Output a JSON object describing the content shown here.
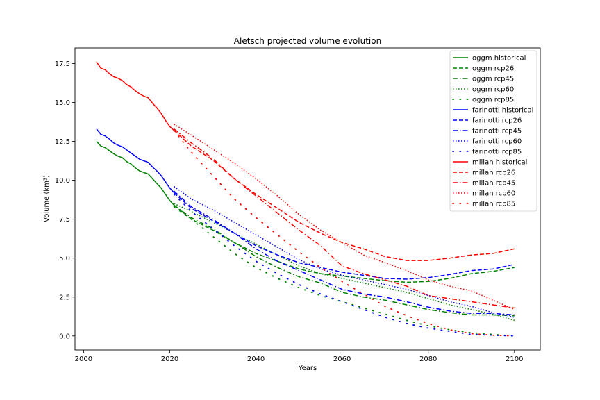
{
  "chart_data": {
    "type": "line",
    "title": "Aletsch projected volume evolution",
    "xlabel": "Years",
    "ylabel": "Volume (km³)",
    "xlim": [
      1998,
      2106
    ],
    "ylim": [
      -0.9,
      18.5
    ],
    "xticks": [
      2000,
      2020,
      2040,
      2060,
      2080,
      2100
    ],
    "xtick_labels": [
      "2000",
      "2020",
      "2040",
      "2060",
      "2080",
      "2100"
    ],
    "yticks": [
      0.0,
      2.5,
      5.0,
      7.5,
      10.0,
      12.5,
      15.0,
      17.5
    ],
    "ytick_labels": [
      "0.0",
      "2.5",
      "5.0",
      "7.5",
      "10.0",
      "12.5",
      "15.0",
      "17.5"
    ],
    "grid": false,
    "legend_position": "top-right",
    "colors": {
      "oggm": "#008000",
      "farinotti": "#0000ff",
      "millan": "#ff0000"
    },
    "series": [
      {
        "name": "oggm historical",
        "model": "oggm",
        "style": "solid",
        "points": [
          [
            2003,
            12.5
          ],
          [
            2004,
            12.2
          ],
          [
            2005,
            12.1
          ],
          [
            2006,
            11.9
          ],
          [
            2007,
            11.7
          ],
          [
            2008,
            11.55
          ],
          [
            2009,
            11.45
          ],
          [
            2010,
            11.2
          ],
          [
            2011,
            11.05
          ],
          [
            2012,
            10.8
          ],
          [
            2013,
            10.6
          ],
          [
            2014,
            10.5
          ],
          [
            2015,
            10.4
          ],
          [
            2016,
            10.1
          ],
          [
            2017,
            9.8
          ],
          [
            2018,
            9.5
          ],
          [
            2019,
            9.1
          ],
          [
            2020,
            8.7
          ],
          [
            2021,
            8.4
          ]
        ]
      },
      {
        "name": "oggm rcp26",
        "model": "oggm",
        "style": "dashed",
        "points": [
          [
            2021,
            8.4
          ],
          [
            2025,
            7.5
          ],
          [
            2030,
            6.8
          ],
          [
            2035,
            6.0
          ],
          [
            2040,
            5.3
          ],
          [
            2045,
            4.8
          ],
          [
            2050,
            4.3
          ],
          [
            2055,
            4.0
          ],
          [
            2060,
            3.85
          ],
          [
            2065,
            3.7
          ],
          [
            2070,
            3.55
          ],
          [
            2075,
            3.45
          ],
          [
            2080,
            3.5
          ],
          [
            2085,
            3.7
          ],
          [
            2090,
            4.0
          ],
          [
            2095,
            4.15
          ],
          [
            2100,
            4.4
          ]
        ]
      },
      {
        "name": "oggm rcp45",
        "model": "oggm",
        "style": "dashdot",
        "points": [
          [
            2021,
            8.4
          ],
          [
            2025,
            7.6
          ],
          [
            2030,
            6.9
          ],
          [
            2035,
            6.0
          ],
          [
            2040,
            5.1
          ],
          [
            2045,
            4.4
          ],
          [
            2050,
            3.8
          ],
          [
            2055,
            3.4
          ],
          [
            2060,
            2.8
          ],
          [
            2065,
            2.5
          ],
          [
            2070,
            2.3
          ],
          [
            2075,
            2.0
          ],
          [
            2080,
            1.7
          ],
          [
            2085,
            1.5
          ],
          [
            2090,
            1.35
          ],
          [
            2095,
            1.35
          ],
          [
            2100,
            1.3
          ]
        ]
      },
      {
        "name": "oggm rcp60",
        "model": "oggm",
        "style": "dotted",
        "points": [
          [
            2021,
            8.5
          ],
          [
            2025,
            8.0
          ],
          [
            2030,
            7.3
          ],
          [
            2035,
            6.6
          ],
          [
            2040,
            5.9
          ],
          [
            2045,
            5.2
          ],
          [
            2050,
            4.5
          ],
          [
            2055,
            4.0
          ],
          [
            2060,
            3.7
          ],
          [
            2065,
            3.4
          ],
          [
            2070,
            3.1
          ],
          [
            2075,
            2.8
          ],
          [
            2080,
            2.4
          ],
          [
            2085,
            2.0
          ],
          [
            2090,
            1.7
          ],
          [
            2095,
            1.4
          ],
          [
            2100,
            1.0
          ]
        ]
      },
      {
        "name": "oggm rcp85",
        "model": "oggm",
        "style": "sparse",
        "points": [
          [
            2021,
            8.3
          ],
          [
            2025,
            7.5
          ],
          [
            2030,
            6.4
          ],
          [
            2035,
            5.3
          ],
          [
            2040,
            4.4
          ],
          [
            2045,
            3.7
          ],
          [
            2050,
            3.1
          ],
          [
            2055,
            2.6
          ],
          [
            2060,
            2.2
          ],
          [
            2065,
            1.8
          ],
          [
            2070,
            1.4
          ],
          [
            2075,
            1.0
          ],
          [
            2080,
            0.65
          ],
          [
            2085,
            0.4
          ],
          [
            2090,
            0.2
          ],
          [
            2095,
            0.1
          ],
          [
            2100,
            0.0
          ]
        ]
      },
      {
        "name": "farinotti historical",
        "model": "farinotti",
        "style": "solid",
        "points": [
          [
            2003,
            13.3
          ],
          [
            2004,
            12.95
          ],
          [
            2005,
            12.85
          ],
          [
            2006,
            12.65
          ],
          [
            2007,
            12.4
          ],
          [
            2008,
            12.25
          ],
          [
            2009,
            12.15
          ],
          [
            2010,
            11.95
          ],
          [
            2011,
            11.75
          ],
          [
            2012,
            11.55
          ],
          [
            2013,
            11.35
          ],
          [
            2014,
            11.25
          ],
          [
            2015,
            11.15
          ],
          [
            2016,
            10.85
          ],
          [
            2017,
            10.6
          ],
          [
            2018,
            10.3
          ],
          [
            2019,
            9.9
          ],
          [
            2020,
            9.5
          ],
          [
            2021,
            9.2
          ]
        ]
      },
      {
        "name": "farinotti rcp26",
        "model": "farinotti",
        "style": "dashed",
        "points": [
          [
            2021,
            9.2
          ],
          [
            2025,
            8.2
          ],
          [
            2030,
            7.4
          ],
          [
            2035,
            6.6
          ],
          [
            2040,
            5.8
          ],
          [
            2045,
            5.2
          ],
          [
            2050,
            4.7
          ],
          [
            2055,
            4.4
          ],
          [
            2060,
            4.1
          ],
          [
            2065,
            3.9
          ],
          [
            2070,
            3.7
          ],
          [
            2075,
            3.65
          ],
          [
            2080,
            3.75
          ],
          [
            2085,
            3.95
          ],
          [
            2090,
            4.2
          ],
          [
            2095,
            4.3
          ],
          [
            2100,
            4.6
          ]
        ]
      },
      {
        "name": "farinotti rcp45",
        "model": "farinotti",
        "style": "dashdot",
        "points": [
          [
            2021,
            9.3
          ],
          [
            2025,
            8.3
          ],
          [
            2030,
            7.5
          ],
          [
            2035,
            6.6
          ],
          [
            2040,
            5.6
          ],
          [
            2045,
            4.8
          ],
          [
            2050,
            4.2
          ],
          [
            2055,
            3.6
          ],
          [
            2060,
            3.0
          ],
          [
            2065,
            2.7
          ],
          [
            2070,
            2.5
          ],
          [
            2075,
            2.2
          ],
          [
            2080,
            1.85
          ],
          [
            2085,
            1.6
          ],
          [
            2090,
            1.45
          ],
          [
            2095,
            1.45
          ],
          [
            2100,
            1.35
          ]
        ]
      },
      {
        "name": "farinotti rcp60",
        "model": "farinotti",
        "style": "dotted",
        "points": [
          [
            2021,
            9.6
          ],
          [
            2025,
            8.8
          ],
          [
            2030,
            8.1
          ],
          [
            2035,
            7.3
          ],
          [
            2040,
            6.5
          ],
          [
            2045,
            5.7
          ],
          [
            2050,
            4.9
          ],
          [
            2055,
            4.3
          ],
          [
            2060,
            3.9
          ],
          [
            2065,
            3.6
          ],
          [
            2070,
            3.3
          ],
          [
            2075,
            3.0
          ],
          [
            2080,
            2.6
          ],
          [
            2085,
            2.2
          ],
          [
            2090,
            1.9
          ],
          [
            2095,
            1.5
          ],
          [
            2100,
            1.2
          ]
        ]
      },
      {
        "name": "farinotti rcp85",
        "model": "farinotti",
        "style": "sparse",
        "points": [
          [
            2021,
            9.1
          ],
          [
            2025,
            8.0
          ],
          [
            2030,
            6.9
          ],
          [
            2035,
            5.8
          ],
          [
            2040,
            4.8
          ],
          [
            2045,
            4.0
          ],
          [
            2050,
            3.3
          ],
          [
            2055,
            2.7
          ],
          [
            2060,
            2.2
          ],
          [
            2065,
            1.7
          ],
          [
            2070,
            1.2
          ],
          [
            2075,
            0.8
          ],
          [
            2080,
            0.5
          ],
          [
            2085,
            0.3
          ],
          [
            2090,
            0.1
          ],
          [
            2095,
            0.05
          ],
          [
            2100,
            0.0
          ]
        ]
      },
      {
        "name": "millan historical",
        "model": "millan",
        "style": "solid",
        "points": [
          [
            2003,
            17.6
          ],
          [
            2004,
            17.2
          ],
          [
            2005,
            17.1
          ],
          [
            2006,
            16.85
          ],
          [
            2007,
            16.65
          ],
          [
            2008,
            16.55
          ],
          [
            2009,
            16.4
          ],
          [
            2010,
            16.15
          ],
          [
            2011,
            16.0
          ],
          [
            2012,
            15.75
          ],
          [
            2013,
            15.55
          ],
          [
            2014,
            15.4
          ],
          [
            2015,
            15.3
          ],
          [
            2016,
            14.95
          ],
          [
            2017,
            14.65
          ],
          [
            2018,
            14.3
          ],
          [
            2019,
            13.85
          ],
          [
            2020,
            13.45
          ],
          [
            2021,
            13.2
          ]
        ]
      },
      {
        "name": "millan rcp26",
        "model": "millan",
        "style": "dashed",
        "points": [
          [
            2021,
            13.2
          ],
          [
            2025,
            12.2
          ],
          [
            2030,
            11.3
          ],
          [
            2035,
            10.1
          ],
          [
            2040,
            9.1
          ],
          [
            2045,
            8.2
          ],
          [
            2050,
            7.3
          ],
          [
            2055,
            6.6
          ],
          [
            2060,
            6.0
          ],
          [
            2065,
            5.6
          ],
          [
            2070,
            5.1
          ],
          [
            2075,
            4.85
          ],
          [
            2080,
            4.85
          ],
          [
            2085,
            5.0
          ],
          [
            2090,
            5.2
          ],
          [
            2095,
            5.3
          ],
          [
            2100,
            5.6
          ]
        ]
      },
      {
        "name": "millan rcp45",
        "model": "millan",
        "style": "dashdot",
        "points": [
          [
            2021,
            13.3
          ],
          [
            2025,
            12.4
          ],
          [
            2030,
            11.4
          ],
          [
            2035,
            10.1
          ],
          [
            2040,
            9.0
          ],
          [
            2045,
            7.9
          ],
          [
            2050,
            6.8
          ],
          [
            2055,
            5.8
          ],
          [
            2060,
            4.5
          ],
          [
            2065,
            4.0
          ],
          [
            2070,
            3.6
          ],
          [
            2075,
            3.2
          ],
          [
            2080,
            2.6
          ],
          [
            2085,
            2.4
          ],
          [
            2090,
            2.2
          ],
          [
            2095,
            2.0
          ],
          [
            2100,
            1.8
          ]
        ]
      },
      {
        "name": "millan rcp60",
        "model": "millan",
        "style": "dotted",
        "points": [
          [
            2021,
            13.6
          ],
          [
            2025,
            12.9
          ],
          [
            2030,
            12.0
          ],
          [
            2035,
            11.1
          ],
          [
            2040,
            10.1
          ],
          [
            2045,
            9.0
          ],
          [
            2050,
            7.8
          ],
          [
            2055,
            6.8
          ],
          [
            2060,
            6.0
          ],
          [
            2065,
            5.2
          ],
          [
            2070,
            4.7
          ],
          [
            2075,
            4.2
          ],
          [
            2080,
            3.6
          ],
          [
            2085,
            3.2
          ],
          [
            2090,
            2.9
          ],
          [
            2095,
            2.3
          ],
          [
            2100,
            1.7
          ]
        ]
      },
      {
        "name": "millan rcp85",
        "model": "millan",
        "style": "sparse",
        "points": [
          [
            2021,
            13.2
          ],
          [
            2025,
            11.8
          ],
          [
            2030,
            10.3
          ],
          [
            2035,
            8.8
          ],
          [
            2040,
            7.6
          ],
          [
            2045,
            6.5
          ],
          [
            2050,
            5.4
          ],
          [
            2055,
            4.4
          ],
          [
            2060,
            3.5
          ],
          [
            2065,
            2.7
          ],
          [
            2070,
            1.9
          ],
          [
            2075,
            1.3
          ],
          [
            2080,
            0.8
          ],
          [
            2085,
            0.4
          ],
          [
            2090,
            0.15
          ],
          [
            2095,
            0.05
          ],
          [
            2100,
            0.0
          ]
        ]
      }
    ]
  }
}
